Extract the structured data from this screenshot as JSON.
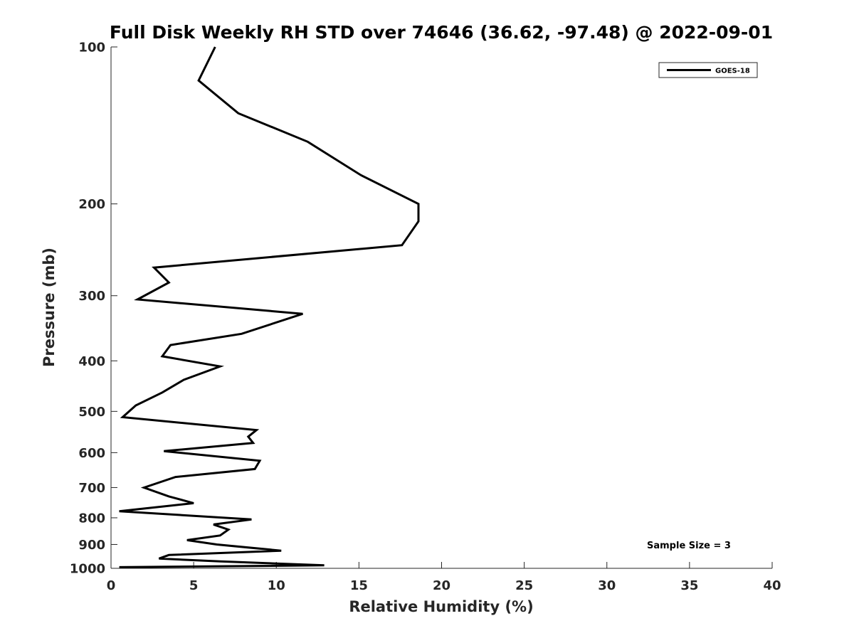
{
  "chart_data": {
    "type": "line",
    "title": "Full Disk Weekly RH STD over 74646 (36.62, -97.48) @ 2022-09-01",
    "xlabel": "Relative Humidity (%)",
    "ylabel": "Pressure (mb)",
    "xlim": [
      0,
      40
    ],
    "ylim": [
      100,
      1000
    ],
    "yscale": "log",
    "y_reversed": true,
    "grid": false,
    "legend_placement": "top-right",
    "x_ticks": [
      0,
      5,
      10,
      15,
      20,
      25,
      30,
      35,
      40
    ],
    "x_tick_labels": [
      "0",
      "5",
      "10",
      "15",
      "20",
      "25",
      "30",
      "35",
      "40"
    ],
    "y_ticks": [
      100,
      200,
      300,
      400,
      500,
      600,
      700,
      800,
      900,
      1000
    ],
    "y_tick_labels": [
      "100",
      "200",
      "300",
      "400",
      "500",
      "600",
      "700",
      "800",
      "900",
      "1000"
    ],
    "series": [
      {
        "name": "GOES-18",
        "color": "#000000",
        "x": [
          6.3,
          5.3,
          7.7,
          11.9,
          15.1,
          18.6,
          18.6,
          17.6,
          2.6,
          3.5,
          1.6,
          11.6,
          7.9,
          3.6,
          3.1,
          6.6,
          4.4,
          3.1,
          1.5,
          0.7,
          8.8,
          8.3,
          8.6,
          3.2,
          9.0,
          8.7,
          3.9,
          2.0,
          3.5,
          5.0,
          0.5,
          8.5,
          6.2,
          7.1,
          6.6,
          4.6,
          6.4,
          10.3,
          3.5,
          2.9,
          6.6,
          12.9,
          0.5
        ],
        "y": [
          100,
          116,
          134,
          152,
          176,
          200,
          216,
          240,
          265,
          283,
          305,
          325,
          355,
          373,
          392,
          410,
          435,
          460,
          487,
          513,
          543,
          559,
          575,
          596,
          622,
          645,
          668,
          700,
          728,
          750,
          777,
          806,
          824,
          843,
          865,
          883,
          900,
          925,
          943,
          958,
          970,
          987,
          995
        ]
      }
    ],
    "legend_entries": [
      "GOES-18"
    ],
    "annotation": "Sample Size = 3"
  }
}
